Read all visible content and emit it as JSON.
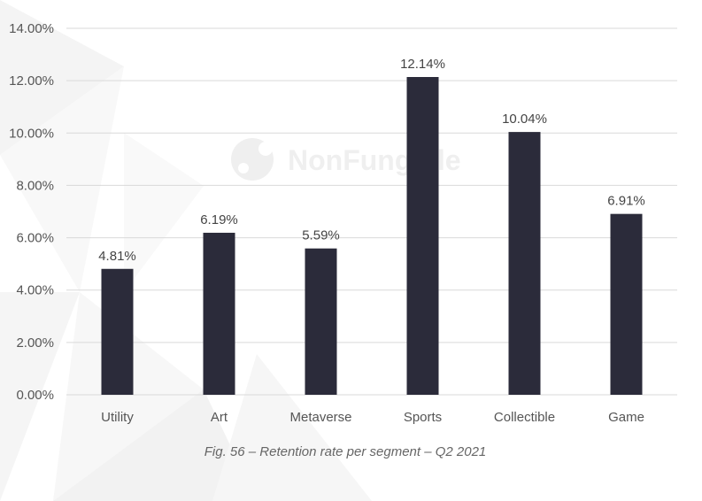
{
  "watermark": {
    "text": "NonFungible"
  },
  "caption": "Fig. 56 – Retention rate per segment – Q2 2021",
  "chart_data": {
    "type": "bar",
    "title": "",
    "xlabel": "",
    "ylabel": "",
    "categories": [
      "Utility",
      "Art",
      "Metaverse",
      "Sports",
      "Collectible",
      "Game"
    ],
    "values": [
      4.81,
      6.19,
      5.59,
      12.14,
      10.04,
      6.91
    ],
    "data_labels": [
      "4.81%",
      "6.19%",
      "5.59%",
      "12.14%",
      "10.04%",
      "6.91%"
    ],
    "ylim": [
      0,
      14
    ],
    "yticks": [
      0,
      2,
      4,
      6,
      8,
      10,
      12,
      14
    ],
    "ytick_labels": [
      "0.00%",
      "2.00%",
      "4.00%",
      "6.00%",
      "8.00%",
      "10.00%",
      "12.00%",
      "14.00%"
    ],
    "grid": true,
    "bar_color": "#2b2b3a",
    "grid_color": "#d9d9d9"
  }
}
